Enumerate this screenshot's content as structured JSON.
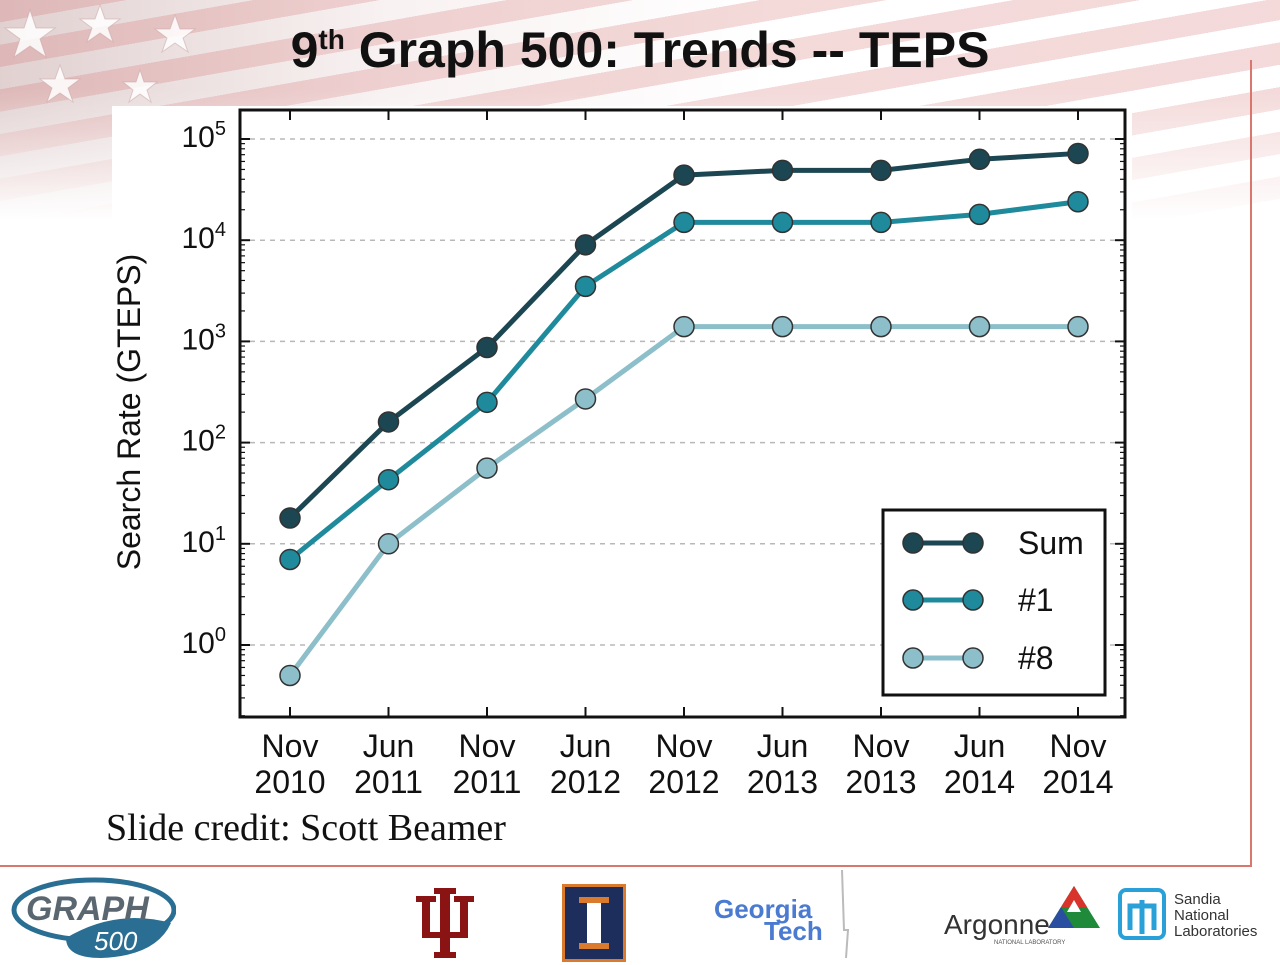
{
  "slide": {
    "title_prefix": "9",
    "title_sup": "th",
    "title_rest": " Graph 500: Trends -- TEPS",
    "credit": "Slide credit: Scott Beamer"
  },
  "logos": {
    "graph500_top": "GRAPH",
    "graph500_bottom": "500",
    "georgia_tech_line1": "Georgia",
    "georgia_tech_line2": "Tech",
    "argonne": "Argonne",
    "argonne_sub": "NATIONAL LABORATORY",
    "sandia_line1": "Sandia",
    "sandia_line2": "National",
    "sandia_line3": "Laboratories"
  },
  "colors": {
    "sum": "#1b4652",
    "first": "#1f8a9b",
    "eighth": "#8cbfca"
  },
  "chart_data": {
    "type": "line",
    "title": "",
    "xlabel": "",
    "ylabel": "Search Rate (GTEPS)",
    "yscale": "log",
    "ylim": [
      0.2,
      125000
    ],
    "grid": true,
    "legend_position": "lower-right",
    "categories": [
      [
        "Nov",
        "2010"
      ],
      [
        "Jun",
        "2011"
      ],
      [
        "Nov",
        "2011"
      ],
      [
        "Jun",
        "2012"
      ],
      [
        "Nov",
        "2012"
      ],
      [
        "Jun",
        "2013"
      ],
      [
        "Nov",
        "2013"
      ],
      [
        "Jun",
        "2014"
      ],
      [
        "Nov",
        "2014"
      ]
    ],
    "yticks": [
      {
        "base": "10",
        "exp": "0",
        "value": 1
      },
      {
        "base": "10",
        "exp": "1",
        "value": 10
      },
      {
        "base": "10",
        "exp": "2",
        "value": 100
      },
      {
        "base": "10",
        "exp": "3",
        "value": 1000
      },
      {
        "base": "10",
        "exp": "4",
        "value": 10000
      },
      {
        "base": "10",
        "exp": "5",
        "value": 100000
      }
    ],
    "series": [
      {
        "name": "Sum",
        "key": "sum",
        "values": [
          18,
          160,
          870,
          9000,
          44000,
          49000,
          49000,
          63000,
          72000
        ]
      },
      {
        "name": "#1",
        "key": "first",
        "values": [
          7,
          43,
          250,
          3500,
          15000,
          15000,
          15000,
          18000,
          24000
        ]
      },
      {
        "name": "#8",
        "key": "eighth",
        "values": [
          0.5,
          10,
          56,
          270,
          1400,
          1400,
          1400,
          1400,
          1400
        ]
      }
    ]
  }
}
